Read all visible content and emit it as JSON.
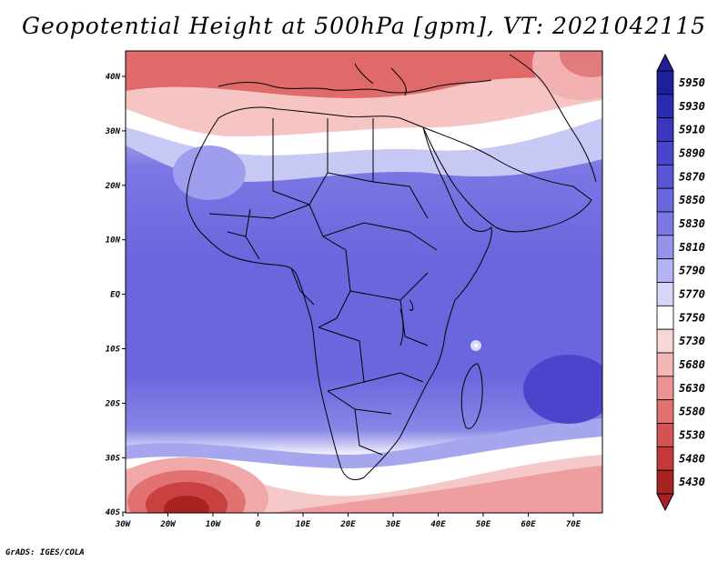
{
  "title": "Geopotential Height at 500hPa [gpm], VT: 2021042115",
  "footer": "GrADS: IGES/COLA",
  "map": {
    "lon_range": [
      -30,
      75
    ],
    "lat_range": [
      -40,
      45
    ],
    "lon_ticks": [
      "30W",
      "20W",
      "10W",
      "0",
      "10E",
      "20E",
      "30E",
      "40E",
      "50E",
      "60E",
      "70E"
    ],
    "lat_ticks": [
      "40N",
      "30N",
      "20N",
      "10N",
      "EQ",
      "10S",
      "20S",
      "30S",
      "40S"
    ]
  },
  "colorbar": {
    "levels": [
      "5950",
      "5930",
      "5910",
      "5890",
      "5870",
      "5850",
      "5830",
      "5810",
      "5790",
      "5770",
      "5750",
      "5730",
      "5680",
      "5630",
      "5580",
      "5530",
      "5480",
      "5430"
    ],
    "colors": [
      "#1f1f9a",
      "#2b2bb0",
      "#3b35c0",
      "#4a45cc",
      "#5a55d5",
      "#6a66dd",
      "#7b78e4",
      "#9594ea",
      "#b4b4f2",
      "#d6d6f8",
      "#ffffff",
      "#f9d7d7",
      "#f3b6b6",
      "#eb9393",
      "#e27272",
      "#d55353",
      "#c33939",
      "#a82222"
    ]
  }
}
